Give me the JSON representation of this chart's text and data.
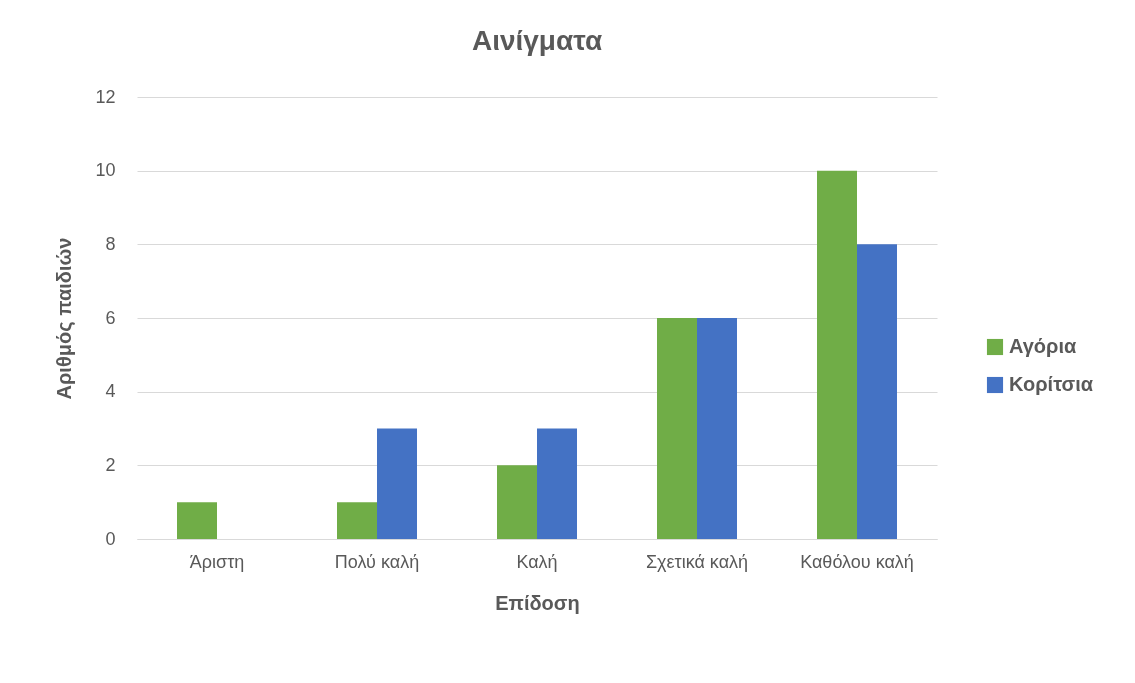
{
  "chart_data": {
    "type": "bar",
    "title": "Αινίγματα",
    "xlabel": "Επίδοση",
    "ylabel": "Αριθμός παιδιών",
    "categories": [
      "Άριστη",
      "Πολύ καλή",
      "Καλή",
      "Σχετικά καλή",
      "Καθόλου καλή"
    ],
    "series": [
      {
        "name": "Αγόρια",
        "color": "#70ad47",
        "values": [
          1,
          1,
          2,
          6,
          10
        ]
      },
      {
        "name": "Κορίτσια",
        "color": "#4472c4",
        "values": [
          0,
          3,
          3,
          6,
          8
        ]
      }
    ],
    "ylim": [
      0,
      12
    ],
    "yticks": [
      0,
      2,
      4,
      6,
      8,
      10,
      12
    ],
    "grid": "y",
    "legend": "right"
  }
}
